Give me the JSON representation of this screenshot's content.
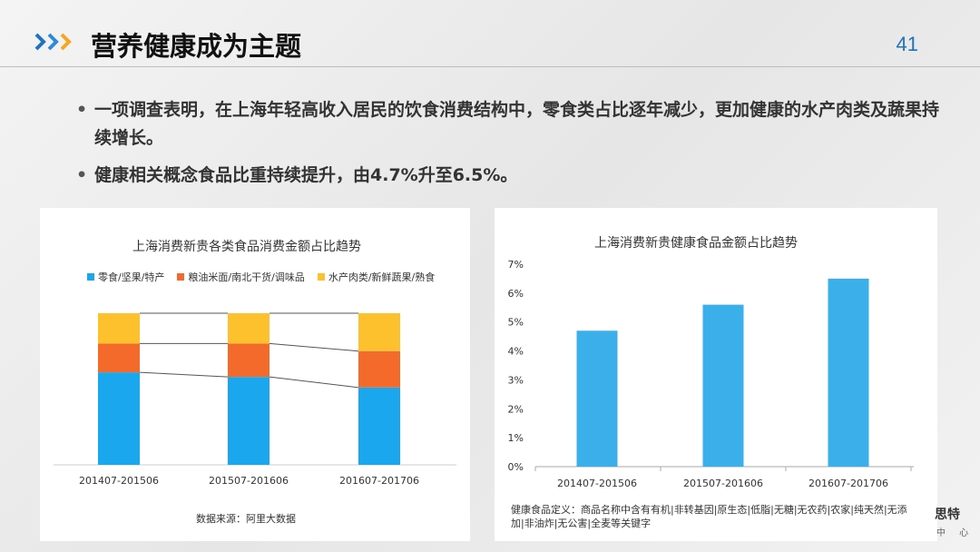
{
  "header": {
    "title": "营养健康成为主题",
    "page_number": "41"
  },
  "bullets": [
    "一项调查表明，在上海年轻高收入居民的饮食消费结构中，零食类占比逐年减少，更加健康的水产肉类及蔬果持续增长。",
    "健康相关概念食品比重持续提升，由4.7%升至6.5%。"
  ],
  "left_panel": {
    "source": "数据来源：阿里大数据"
  },
  "right_panel": {
    "definition": "健康食品定义：商品名称中含有有机|非转基因|原生态|低脂|无糖|无农药|农家|纯天然|无添加|非油炸|无公害|全麦等关键字"
  },
  "brand": {
    "name": "思特",
    "sub": "中 心"
  },
  "colors": {
    "accent": "#1e73be",
    "blue": "#1aa7ee",
    "orange": "#f46a2a",
    "yellow": "#fdc12e"
  },
  "chart_data": [
    {
      "type": "bar",
      "stacked": true,
      "title": "上海消费新贵各类食品消费金额占比趋势",
      "categories": [
        "201407-201506",
        "201507-201606",
        "201607-201706"
      ],
      "series": [
        {
          "name": "零食/坚果/特产",
          "values": [
            61,
            58,
            51
          ]
        },
        {
          "name": "粮油米面/南北干货/调味品",
          "values": [
            19,
            22,
            24
          ]
        },
        {
          "name": "水产肉类/新鲜蔬果/熟食",
          "values": [
            20,
            20,
            25
          ]
        }
      ],
      "ylim": [
        0,
        100
      ],
      "legend_position": "top",
      "grid": false
    },
    {
      "type": "bar",
      "title": "上海消费新贵健康食品金额占比趋势",
      "categories": [
        "201407-201506",
        "201507-201606",
        "201607-201706"
      ],
      "values": [
        4.7,
        5.6,
        6.5
      ],
      "yticks": [
        "0%",
        "1%",
        "2%",
        "3%",
        "4%",
        "5%",
        "6%",
        "7%"
      ],
      "ylim": [
        0,
        7
      ],
      "grid": false
    }
  ]
}
